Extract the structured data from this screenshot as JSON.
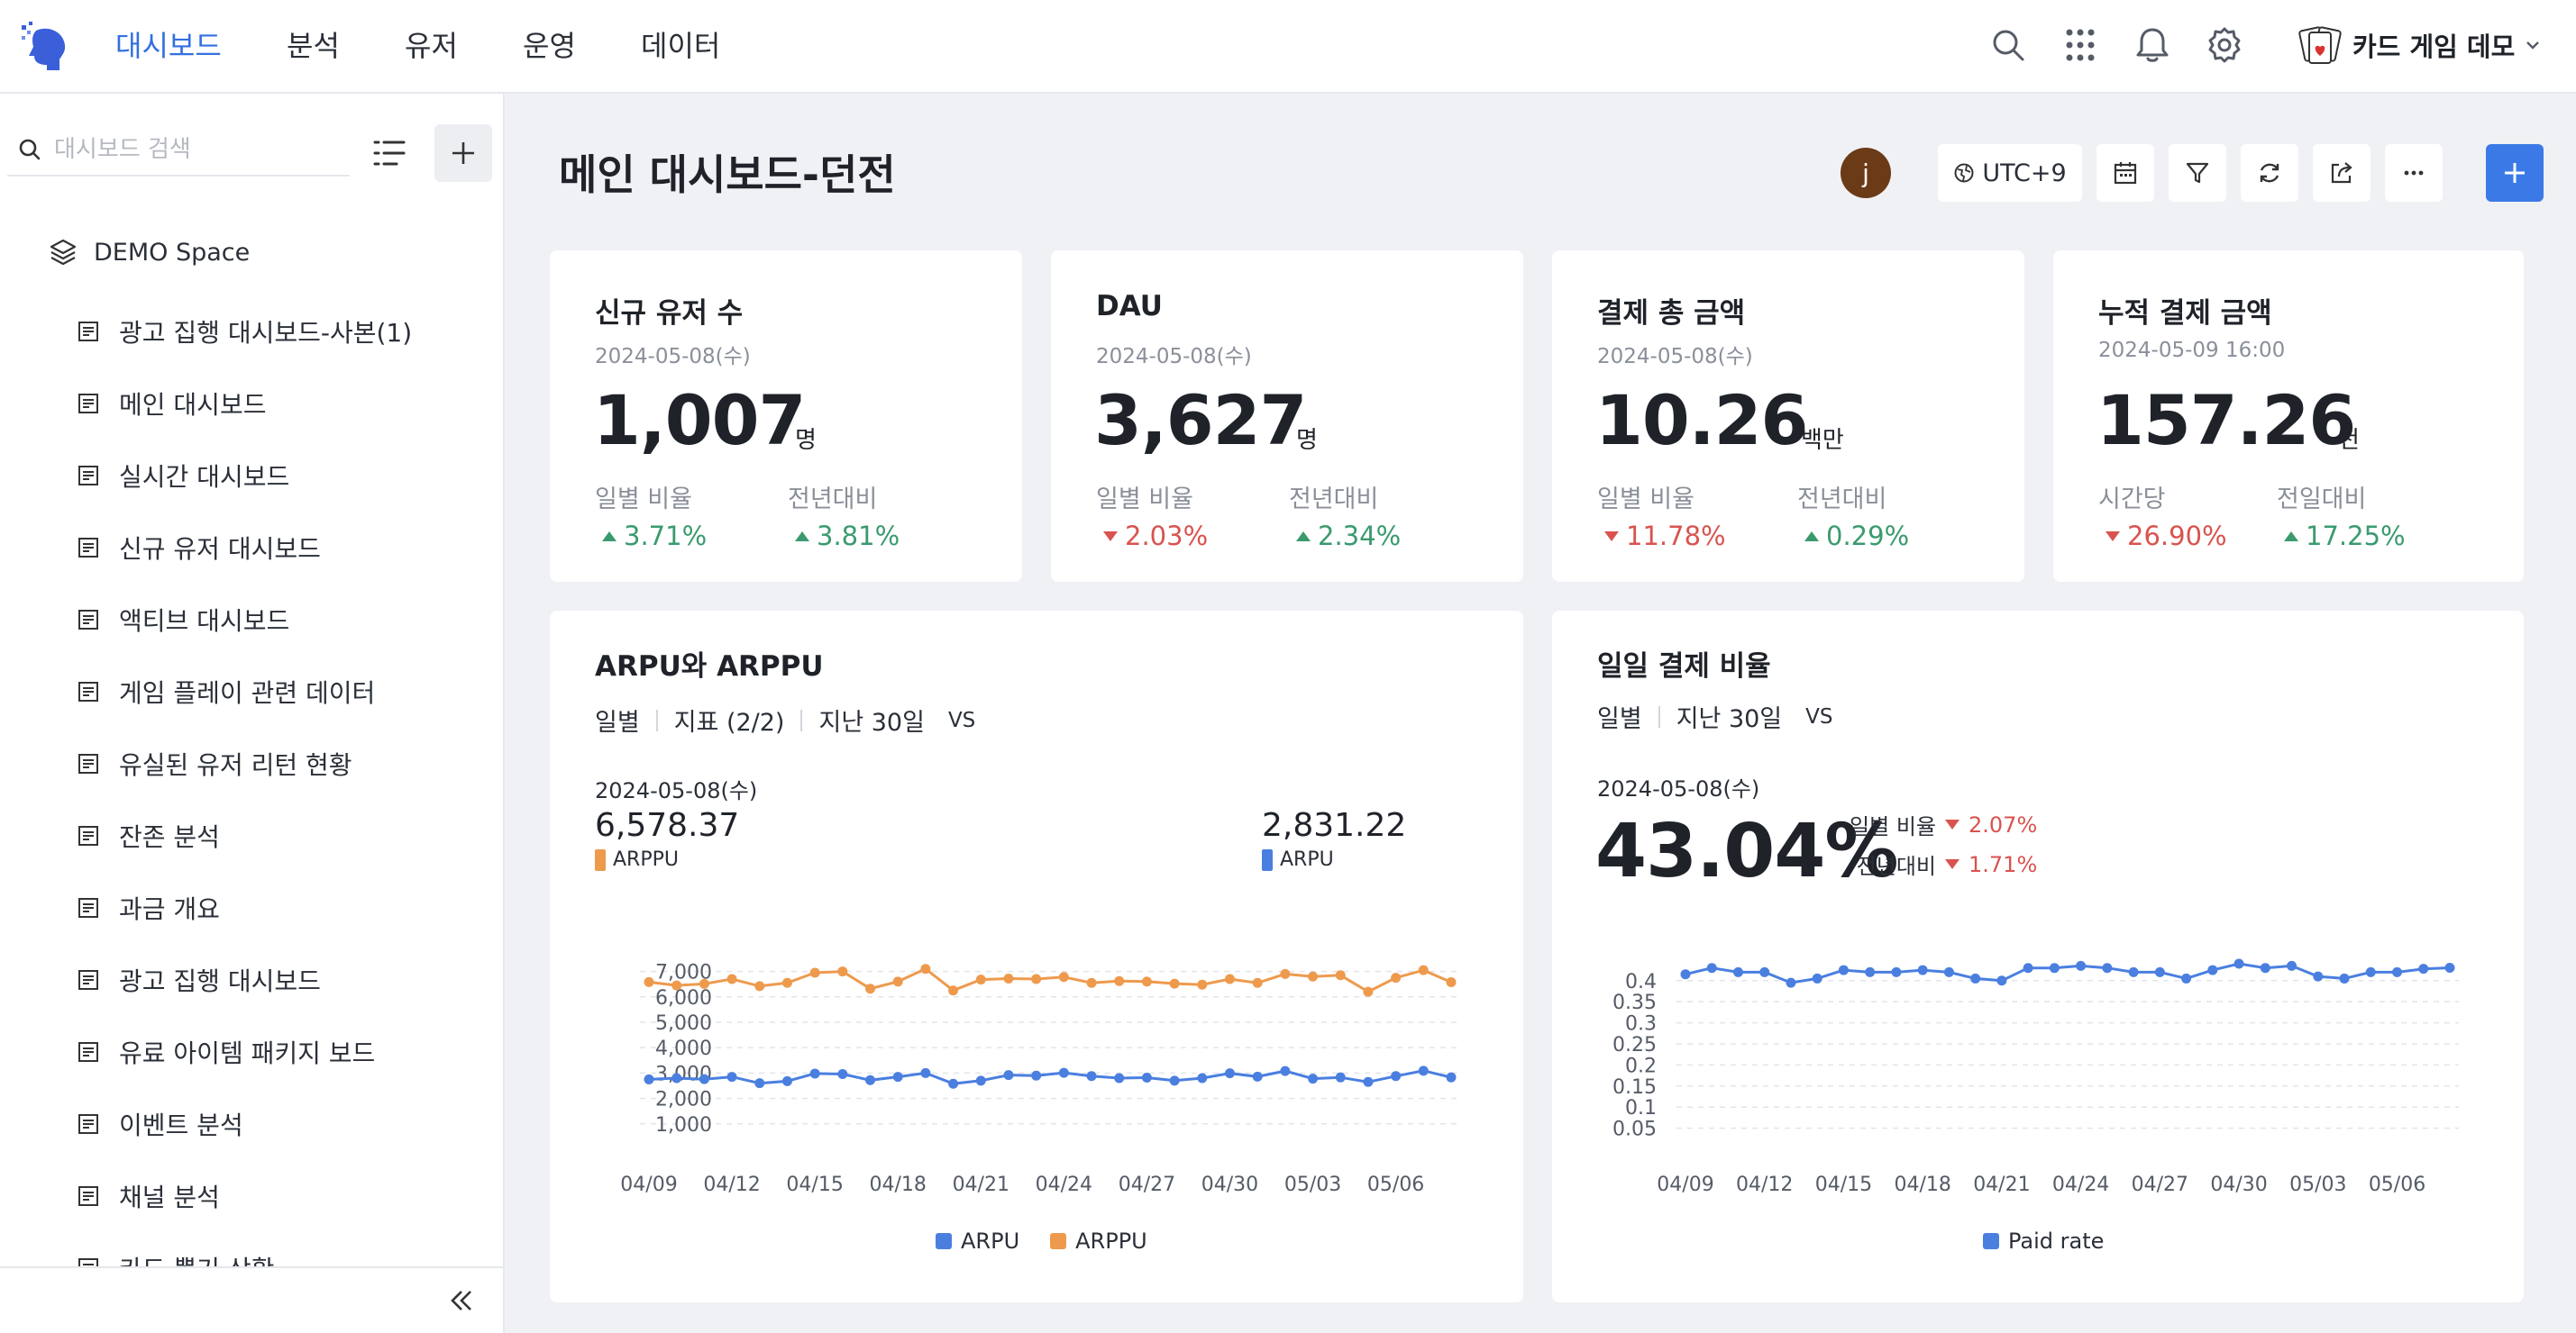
{
  "nav": {
    "items": [
      "대시보드",
      "분석",
      "유저",
      "운영",
      "데이터"
    ],
    "active": 0
  },
  "project": {
    "name": "카드 게임 데모"
  },
  "sidebar": {
    "search_placeholder": "대시보드 검색",
    "space": "DEMO Space",
    "items": [
      "광고 집행 대시보드-사본(1)",
      "메인 대시보드",
      "실시간 대시보드",
      "신규 유저 대시보드",
      "액티브 대시보드",
      "게임 플레이 관련 데이터",
      "유실된 유저 리턴 현황",
      "잔존 분석",
      "과금 개요",
      "광고 집행 대시보드",
      "유료 아이템 패키지 보드",
      "이벤트 분석",
      "채널 분석",
      "카드 뽑기 상황"
    ]
  },
  "header": {
    "title": "메인 대시보드-던전",
    "user_initial": "j",
    "timezone": "UTC+9"
  },
  "kpis": [
    {
      "title": "신규 유저 수",
      "date": "2024-05-08(수)",
      "value": "1,007",
      "unit": "명",
      "label1": "일별 비율",
      "change1": "3.71%",
      "dir1": "up",
      "label2": "전년대비",
      "change2": "3.81%",
      "dir2": "up"
    },
    {
      "title": "DAU",
      "date": "2024-05-08(수)",
      "value": "3,627",
      "unit": "명",
      "label1": "일별 비율",
      "change1": "2.03%",
      "dir1": "down",
      "label2": "전년대비",
      "change2": "2.34%",
      "dir2": "up"
    },
    {
      "title": "결제 총 금액",
      "date": "2024-05-08(수)",
      "value": "10.26",
      "unit": "백만",
      "label1": "일별 비율",
      "change1": "11.78%",
      "dir1": "down",
      "label2": "전년대비",
      "change2": "0.29%",
      "dir2": "up"
    },
    {
      "title": "누적 결제 금액",
      "date": "2024-05-09 16:00",
      "value": "157.26",
      "unit": "천",
      "label1": "시간당",
      "change1": "26.90%",
      "dir1": "down",
      "label2": "전일대비",
      "change2": "17.25%",
      "dir2": "up"
    }
  ],
  "arpu_card": {
    "title": "ARPU와 ARPPU",
    "filters": [
      "일별",
      "지표 (2/2)",
      "지난 30일"
    ],
    "vs": "VS",
    "date": "2024-05-08(수)",
    "arppu_value": "6,578.37",
    "arppu_label": "ARPPU",
    "arpu_value": "2,831.22",
    "arpu_label": "ARPU"
  },
  "paid_card": {
    "title": "일일 결제 비율",
    "filters": [
      "일별",
      "지난 30일"
    ],
    "vs": "VS",
    "date": "2024-05-08(수)",
    "value": "43.04%",
    "label1": "일별 비율",
    "change1": "2.07%",
    "label2": "전년대비",
    "change2": "1.71%"
  },
  "colors": {
    "accent": "#3370e0",
    "arpu": "#4a7fe0",
    "arppu": "#ee9a4d",
    "up": "#3a9a6e",
    "down": "#d9534f"
  },
  "chart_data": [
    {
      "type": "line",
      "title": "ARPU와 ARPPU",
      "x": [
        "04/09",
        "04/10",
        "04/11",
        "04/12",
        "04/13",
        "04/14",
        "04/15",
        "04/16",
        "04/17",
        "04/18",
        "04/19",
        "04/20",
        "04/21",
        "04/22",
        "04/23",
        "04/24",
        "04/25",
        "04/26",
        "04/27",
        "04/28",
        "04/29",
        "04/30",
        "05/01",
        "05/02",
        "05/03",
        "05/04",
        "05/05",
        "05/06",
        "05/07",
        "05/08"
      ],
      "xticks": [
        "04/09",
        "04/12",
        "04/15",
        "04/18",
        "04/21",
        "04/24",
        "04/27",
        "04/30",
        "05/03",
        "05/06"
      ],
      "yticks": [
        1000,
        2000,
        3000,
        4000,
        5000,
        6000,
        7000
      ],
      "ytick_labels": [
        "1,000",
        "2,000",
        "3,000",
        "4,000",
        "5,000",
        "6,000",
        "7,000"
      ],
      "ylim": [
        0,
        7800
      ],
      "grid": true,
      "legend": "bottom",
      "series": [
        {
          "name": "ARPU",
          "color": "#4a7fe0",
          "values": [
            2750,
            2800,
            2760,
            2850,
            2600,
            2680,
            2980,
            2960,
            2720,
            2850,
            3000,
            2580,
            2700,
            2920,
            2900,
            3010,
            2880,
            2800,
            2820,
            2700,
            2800,
            2990,
            2860,
            3080,
            2780,
            2830,
            2650,
            2880,
            3090,
            2830
          ]
        },
        {
          "name": "ARPPU",
          "color": "#ee9a4d",
          "values": [
            6580,
            6450,
            6510,
            6700,
            6420,
            6550,
            6950,
            7000,
            6320,
            6600,
            7100,
            6250,
            6680,
            6720,
            6700,
            6780,
            6550,
            6620,
            6600,
            6520,
            6480,
            6700,
            6550,
            6900,
            6800,
            6850,
            6200,
            6750,
            7050,
            6578
          ]
        }
      ]
    },
    {
      "type": "line",
      "title": "일일 결제 비율",
      "x": [
        "04/09",
        "04/10",
        "04/11",
        "04/12",
        "04/13",
        "04/14",
        "04/15",
        "04/16",
        "04/17",
        "04/18",
        "04/19",
        "04/20",
        "04/21",
        "04/22",
        "04/23",
        "04/24",
        "04/25",
        "04/26",
        "04/27",
        "04/28",
        "04/29",
        "04/30",
        "05/01",
        "05/02",
        "05/03",
        "05/04",
        "05/05",
        "05/06",
        "05/07",
        "05/08"
      ],
      "xticks": [
        "04/09",
        "04/12",
        "04/15",
        "04/18",
        "04/21",
        "04/24",
        "04/27",
        "04/30",
        "05/03",
        "05/06"
      ],
      "yticks": [
        0.05,
        0.1,
        0.15,
        0.2,
        0.25,
        0.3,
        0.35,
        0.4
      ],
      "ytick_labels": [
        "0.05",
        "0.1",
        "0.15",
        "0.2",
        "0.25",
        "0.3",
        "0.35",
        "0.4"
      ],
      "ylim": [
        0,
        0.47
      ],
      "grid": true,
      "legend": "bottom",
      "series": [
        {
          "name": "Paid rate",
          "color": "#4a7fe0",
          "values": [
            0.415,
            0.43,
            0.42,
            0.42,
            0.395,
            0.405,
            0.425,
            0.42,
            0.42,
            0.425,
            0.42,
            0.405,
            0.4,
            0.43,
            0.43,
            0.435,
            0.43,
            0.42,
            0.42,
            0.405,
            0.425,
            0.44,
            0.43,
            0.435,
            0.41,
            0.405,
            0.42,
            0.42,
            0.428,
            0.4304
          ]
        }
      ]
    }
  ]
}
